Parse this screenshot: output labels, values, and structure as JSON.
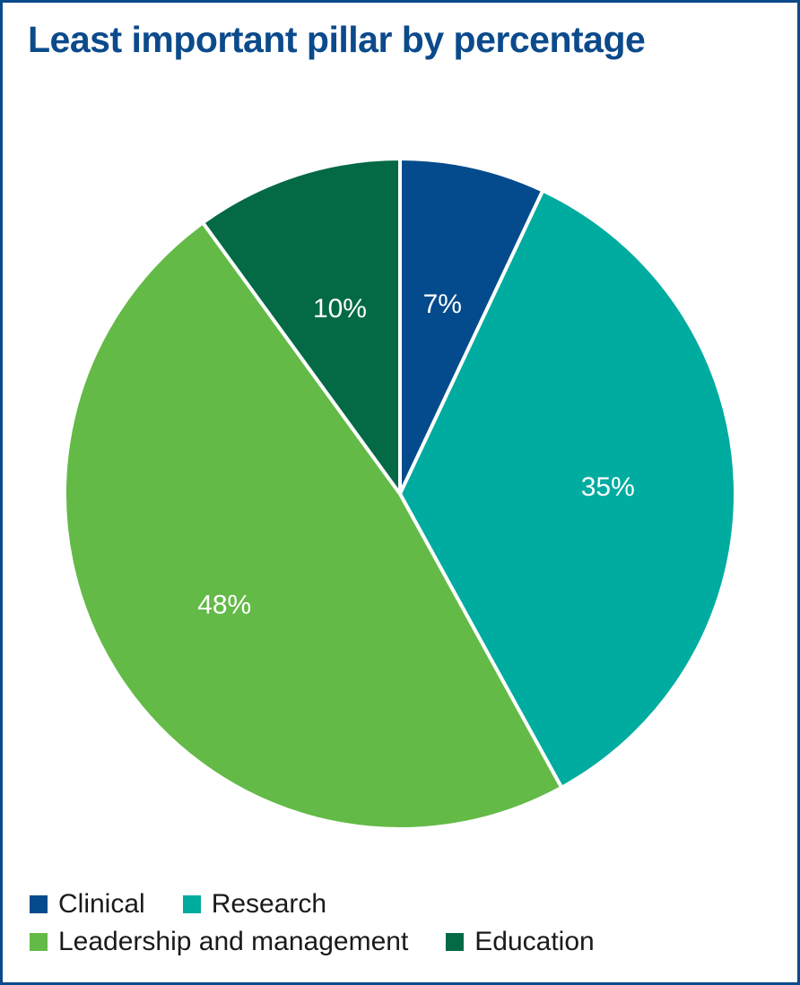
{
  "chart_data": {
    "type": "pie",
    "title": "Least important pillar by percentage",
    "categories": [
      "Clinical",
      "Research",
      "Leadership and management",
      "Education"
    ],
    "values": [
      7,
      35,
      48,
      10
    ],
    "labels": [
      "7%",
      "35%",
      "48%",
      "10%"
    ],
    "colors": [
      "#034b8c",
      "#00ab9f",
      "#63ba47",
      "#046a46"
    ],
    "legend_position": "bottom",
    "start_angle": "top",
    "direction": "clockwise"
  }
}
